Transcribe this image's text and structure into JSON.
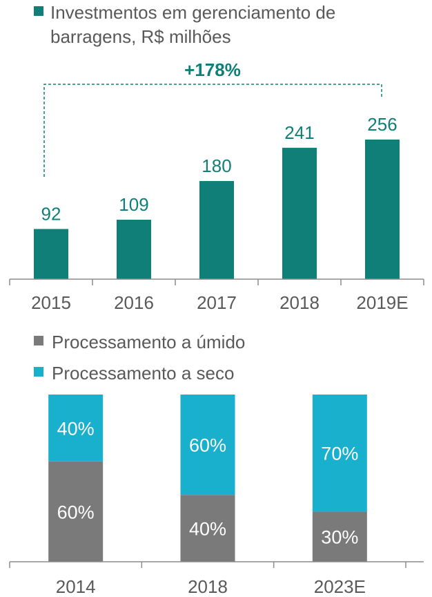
{
  "colors": {
    "teal": "#0f7f78",
    "teal_text": "#0f7f78",
    "gray": "#7a7a7a",
    "cyan": "#18b0cc",
    "axis": "#8c8c8c",
    "label": "#595959",
    "inner_label": "#ffffff"
  },
  "chart_data": [
    {
      "type": "bar",
      "legend": {
        "name": "Investmentos em gerenciamento de barragens, R$ milhões",
        "lines": [
          "Investmentos em gerenciamento de",
          "barragens, R$ milhões"
        ]
      },
      "categories": [
        "2015",
        "2016",
        "2017",
        "2018",
        "2019E"
      ],
      "series": [
        {
          "name": "Investmentos em gerenciamento de barragens, R$ milhões",
          "values": [
            92,
            109,
            180,
            241,
            256
          ]
        }
      ],
      "data_labels": [
        "92",
        "109",
        "180",
        "241",
        "256"
      ],
      "annotation": {
        "text": "+178%",
        "from": "2015",
        "to": "2019E"
      },
      "ylim": [
        0,
        256
      ]
    },
    {
      "type": "bar",
      "stacked": true,
      "legend": [
        "Processamento a úmido",
        "Processamento a seco"
      ],
      "categories": [
        "2014",
        "2018",
        "2023E"
      ],
      "series": [
        {
          "name": "Processamento a úmido",
          "values": [
            60,
            40,
            30
          ],
          "labels": [
            "60%",
            "40%",
            "30%"
          ]
        },
        {
          "name": "Processamento a seco",
          "values": [
            40,
            60,
            70
          ],
          "labels": [
            "40%",
            "60%",
            "70%"
          ]
        }
      ],
      "ylim": [
        0,
        100
      ]
    }
  ]
}
